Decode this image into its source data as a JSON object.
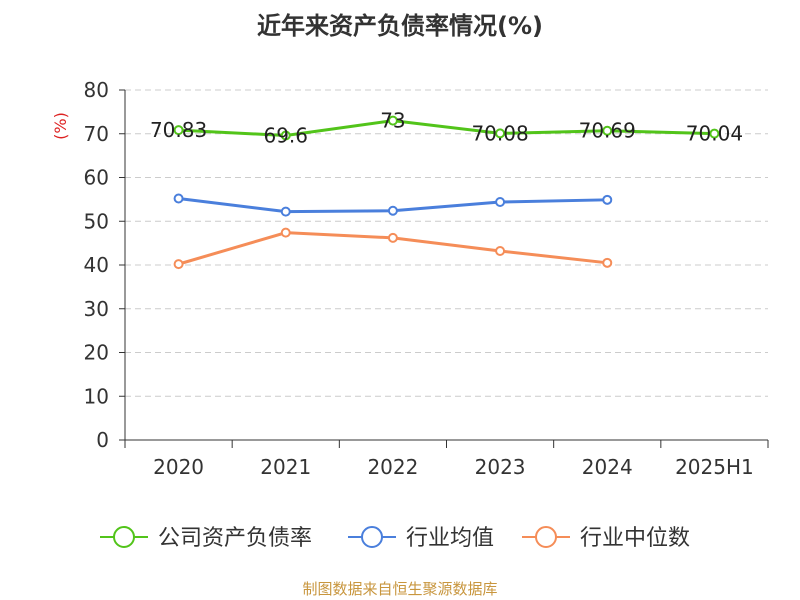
{
  "chart_data": {
    "type": "line",
    "title": "近年来资产负债率情况(%)",
    "ylabel": "(%)",
    "xlabel": "",
    "categories": [
      "2020",
      "2021",
      "2022",
      "2023",
      "2024",
      "2025H1"
    ],
    "ylim": [
      0,
      80
    ],
    "yticks": [
      0,
      10,
      20,
      30,
      40,
      50,
      60,
      70,
      80
    ],
    "grid": true,
    "legend_position": "bottom",
    "series": [
      {
        "name": "公司资产负债率",
        "color": "#52c41a",
        "values": [
          70.83,
          69.6,
          73,
          70.08,
          70.69,
          70.04
        ],
        "labels": [
          "70.83",
          "69.6",
          "73",
          "70.08",
          "70.69",
          "70.04"
        ]
      },
      {
        "name": "行业均值",
        "color": "#4a7fdc",
        "values": [
          55.2,
          52.2,
          52.4,
          54.4,
          54.9,
          null
        ]
      },
      {
        "name": "行业中位数",
        "color": "#f58d58",
        "values": [
          40.2,
          47.4,
          46.2,
          43.2,
          40.5,
          null
        ]
      }
    ]
  },
  "footer": "制图数据来自恒生聚源数据库"
}
